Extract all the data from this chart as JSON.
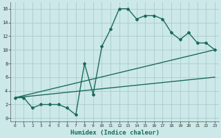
{
  "bg_color": "#cce8e8",
  "grid_color": "#aacccc",
  "line_color": "#1a6b5a",
  "xlabel": "Humidex (Indice chaleur)",
  "xlim": [
    -0.5,
    23.5
  ],
  "ylim": [
    -0.5,
    17
  ],
  "xticks": [
    0,
    1,
    2,
    3,
    4,
    5,
    6,
    7,
    8,
    9,
    10,
    11,
    12,
    13,
    14,
    15,
    16,
    17,
    18,
    19,
    20,
    21,
    22,
    23
  ],
  "yticks": [
    0,
    2,
    4,
    6,
    8,
    10,
    12,
    14,
    16
  ],
  "series": [
    {
      "x": [
        0,
        1,
        2,
        3,
        4,
        5,
        6,
        7,
        8,
        9,
        10,
        11,
        12,
        13,
        14,
        15,
        16,
        17,
        18,
        19,
        20,
        21,
        22,
        23
      ],
      "y": [
        3,
        3,
        1.5,
        2,
        2,
        2,
        1.5,
        0.5,
        8,
        3.5,
        10.5,
        13,
        16,
        16,
        14.5,
        15,
        15,
        14.5,
        12.5,
        11.5,
        12.5,
        11,
        11,
        10
      ],
      "marker": "D",
      "markersize": 2.0,
      "linewidth": 1.0,
      "zorder": 3
    },
    {
      "x": [
        0,
        23
      ],
      "y": [
        3,
        10
      ],
      "marker": null,
      "linewidth": 1.0,
      "zorder": 2
    },
    {
      "x": [
        0,
        23
      ],
      "y": [
        3,
        6
      ],
      "marker": null,
      "linewidth": 1.0,
      "zorder": 2
    }
  ]
}
